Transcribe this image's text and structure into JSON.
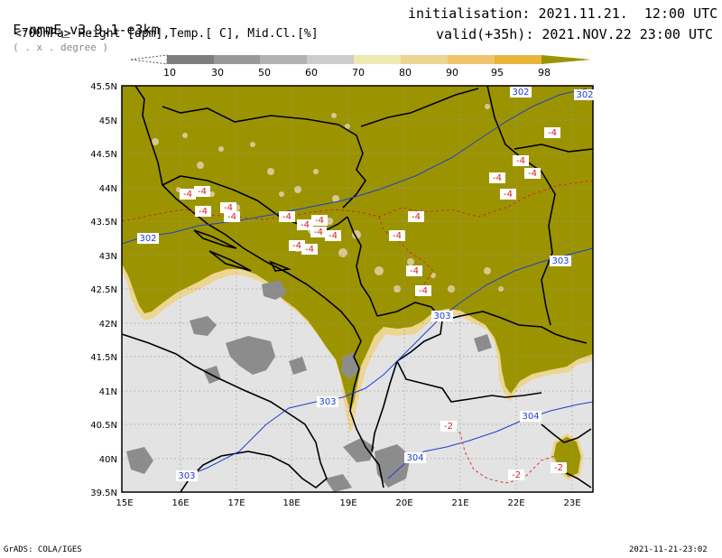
{
  "header": {
    "model": "F-nmmE_v3.9.1-e3km",
    "units_hint": "( . x . degree )",
    "initialisation": "initialisation: 2021.11.21.  12:00 UTC",
    "field": "<700hPa> Height [dpm],Temp.[ C], Mid.Cl.[%]",
    "valid": "valid(+35h): 2021.NOV.22 23:00 UTC"
  },
  "colorbar": {
    "labels": [
      "10",
      "30",
      "50",
      "60",
      "70",
      "80",
      "90",
      "95",
      "98"
    ],
    "colors": [
      "#7e7e7e",
      "#999999",
      "#b2b2b2",
      "#cccccc",
      "#ede9b0",
      "#edd592",
      "#eec56c",
      "#e8b43a",
      "#9b9400"
    ]
  },
  "map": {
    "lat_labels": [
      "45.5N",
      "45N",
      "44.5N",
      "44N",
      "43.5N",
      "43N",
      "42.5N",
      "42N",
      "41.5N",
      "41N",
      "40.5N",
      "40N",
      "39.5N"
    ],
    "lon_labels": [
      "15E",
      "16E",
      "17E",
      "18E",
      "19E",
      "20E",
      "21E",
      "22E",
      "23E"
    ],
    "height_labels": [
      "302",
      "302",
      "302",
      "303",
      "303",
      "303",
      "304",
      "304",
      "303"
    ],
    "temp_labels": [
      "-4",
      "-4",
      "-4",
      "-4",
      "-4",
      "-4",
      "-4",
      "-4",
      "-4",
      "-4",
      "-4",
      "-4",
      "-4",
      "-4",
      "-4",
      "-4",
      "-4",
      "-4",
      "-4",
      "-4",
      "-4",
      "-2",
      "-2",
      "-2"
    ],
    "colors": {
      "cloud_high": "#9b9400",
      "cloud_edge": "#edd592",
      "sea_land": "#e3e3e3",
      "height_contour": "#1f3fd0",
      "temp_contour": "#d82020",
      "border": "#000000"
    }
  },
  "footer": {
    "left": "GrADS: COLA/IGES",
    "right": "2021-11-21-23:02"
  }
}
